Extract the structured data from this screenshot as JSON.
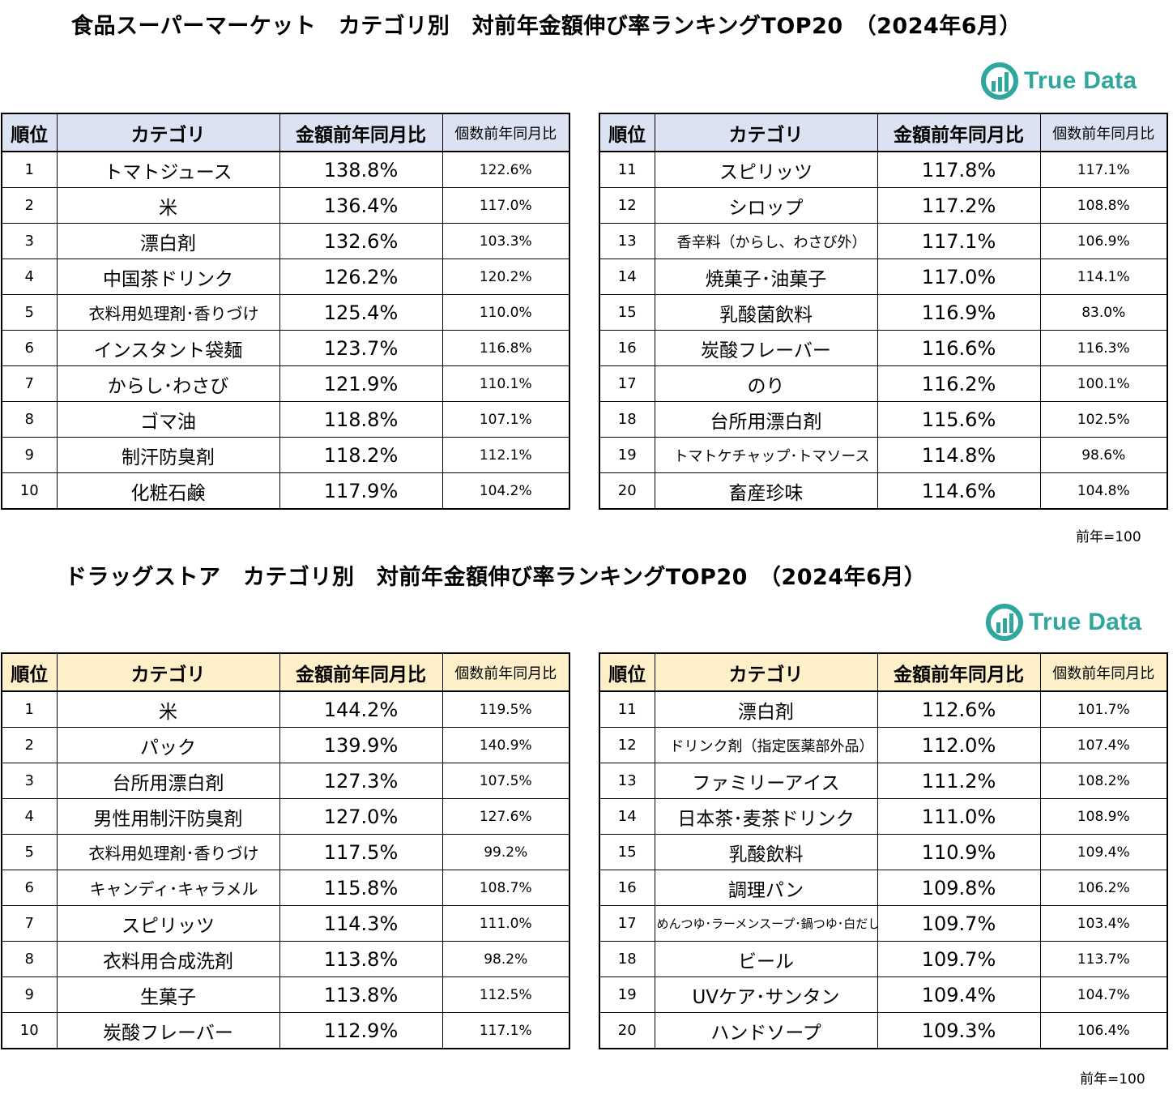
{
  "sections": [
    {
      "title": "食品スーパーマーケット　カテゴリ別　対前年金額伸び率ランキングTOP20　（2024年6月）",
      "logo": "True Data",
      "headers": {
        "rank": "順位",
        "category": "カテゴリ",
        "amount": "金額前年同月比",
        "count": "個数前年同月比"
      },
      "left": [
        {
          "rank": "1",
          "category": "トマトジュース",
          "amount": "138.8%",
          "count": "122.6%"
        },
        {
          "rank": "2",
          "category": "米",
          "amount": "136.4%",
          "count": "117.0%"
        },
        {
          "rank": "3",
          "category": "漂白剤",
          "amount": "132.6%",
          "count": "103.3%"
        },
        {
          "rank": "4",
          "category": "中国茶ドリンク",
          "amount": "126.2%",
          "count": "120.2%"
        },
        {
          "rank": "5",
          "category": "衣料用処理剤･香りづけ",
          "amount": "125.4%",
          "count": "110.0%"
        },
        {
          "rank": "6",
          "category": "インスタント袋麺",
          "amount": "123.7%",
          "count": "116.8%"
        },
        {
          "rank": "7",
          "category": "からし･わさび",
          "amount": "121.9%",
          "count": "110.1%"
        },
        {
          "rank": "8",
          "category": "ゴマ油",
          "amount": "118.8%",
          "count": "107.1%"
        },
        {
          "rank": "9",
          "category": "制汗防臭剤",
          "amount": "118.2%",
          "count": "112.1%"
        },
        {
          "rank": "10",
          "category": "化粧石鹸",
          "amount": "117.9%",
          "count": "104.2%"
        }
      ],
      "right": [
        {
          "rank": "11",
          "category": "スピリッツ",
          "amount": "117.8%",
          "count": "117.1%"
        },
        {
          "rank": "12",
          "category": "シロップ",
          "amount": "117.2%",
          "count": "108.8%"
        },
        {
          "rank": "13",
          "category": "香辛料（からし、わさび外）",
          "amount": "117.1%",
          "count": "106.9%"
        },
        {
          "rank": "14",
          "category": "焼菓子･油菓子",
          "amount": "117.0%",
          "count": "114.1%"
        },
        {
          "rank": "15",
          "category": "乳酸菌飲料",
          "amount": "116.9%",
          "count": "83.0%"
        },
        {
          "rank": "16",
          "category": "炭酸フレーバー",
          "amount": "116.6%",
          "count": "116.3%"
        },
        {
          "rank": "17",
          "category": "のり",
          "amount": "116.2%",
          "count": "100.1%"
        },
        {
          "rank": "18",
          "category": "台所用漂白剤",
          "amount": "115.6%",
          "count": "102.5%"
        },
        {
          "rank": "19",
          "category": "トマトケチャップ･トマソース",
          "amount": "114.8%",
          "count": "98.6%"
        },
        {
          "rank": "20",
          "category": "畜産珍味",
          "amount": "114.6%",
          "count": "104.8%"
        }
      ],
      "note": "前年=100"
    },
    {
      "title": "ドラッグストア　カテゴリ別　対前年金額伸び率ランキングTOP20　（2024年6月）",
      "logo": "True Data",
      "headers": {
        "rank": "順位",
        "category": "カテゴリ",
        "amount": "金額前年同月比",
        "count": "個数前年同月比"
      },
      "left": [
        {
          "rank": "1",
          "category": "米",
          "amount": "144.2%",
          "count": "119.5%"
        },
        {
          "rank": "2",
          "category": "パック",
          "amount": "139.9%",
          "count": "140.9%"
        },
        {
          "rank": "3",
          "category": "台所用漂白剤",
          "amount": "127.3%",
          "count": "107.5%"
        },
        {
          "rank": "4",
          "category": "男性用制汗防臭剤",
          "amount": "127.0%",
          "count": "127.6%"
        },
        {
          "rank": "5",
          "category": "衣料用処理剤･香りづけ",
          "amount": "117.5%",
          "count": "99.2%"
        },
        {
          "rank": "6",
          "category": "キャンディ･キャラメル",
          "amount": "115.8%",
          "count": "108.7%"
        },
        {
          "rank": "7",
          "category": "スピリッツ",
          "amount": "114.3%",
          "count": "111.0%"
        },
        {
          "rank": "8",
          "category": "衣料用合成洗剤",
          "amount": "113.8%",
          "count": "98.2%"
        },
        {
          "rank": "9",
          "category": "生菓子",
          "amount": "113.8%",
          "count": "112.5%"
        },
        {
          "rank": "10",
          "category": "炭酸フレーバー",
          "amount": "112.9%",
          "count": "117.1%"
        }
      ],
      "right": [
        {
          "rank": "11",
          "category": "漂白剤",
          "amount": "112.6%",
          "count": "101.7%"
        },
        {
          "rank": "12",
          "category": "ドリンク剤（指定医薬部外品）",
          "amount": "112.0%",
          "count": "107.4%"
        },
        {
          "rank": "13",
          "category": "ファミリーアイス",
          "amount": "111.2%",
          "count": "108.2%"
        },
        {
          "rank": "14",
          "category": "日本茶･麦茶ドリンク",
          "amount": "111.0%",
          "count": "108.9%"
        },
        {
          "rank": "15",
          "category": "乳酸飲料",
          "amount": "110.9%",
          "count": "109.4%"
        },
        {
          "rank": "16",
          "category": "調理パン",
          "amount": "109.8%",
          "count": "106.2%"
        },
        {
          "rank": "17",
          "category": "めんつゆ･ラーメンスープ･鍋つゆ･白だし",
          "amount": "109.7%",
          "count": "103.4%"
        },
        {
          "rank": "18",
          "category": "ビール",
          "amount": "109.7%",
          "count": "113.7%"
        },
        {
          "rank": "19",
          "category": "UVケア･サンタン",
          "amount": "109.4%",
          "count": "104.7%"
        },
        {
          "rank": "20",
          "category": "ハンドソープ",
          "amount": "109.3%",
          "count": "106.4%"
        }
      ],
      "note": "前年=100"
    }
  ],
  "colors": {
    "header_food": "#dbe3f3",
    "header_drug": "#fdf0c8",
    "logo": "#2fa79c"
  }
}
